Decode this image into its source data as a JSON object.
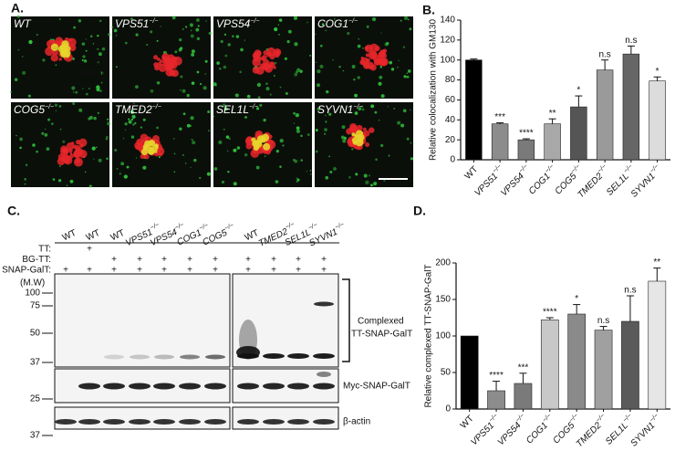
{
  "panels": {
    "a": {
      "label": "A.",
      "images": [
        "WT",
        "VPS51−/−",
        "VPS54−/−",
        "COG1−/−",
        "COG5−/−",
        "TMED2−/−",
        "SEL1L−/−",
        "SYVN1−/−"
      ],
      "channels": [
        "TT",
        "GM130"
      ]
    },
    "b": {
      "label": "B."
    },
    "c": {
      "label": "C."
    },
    "d": {
      "label": "D."
    }
  },
  "blot": {
    "lanes": [
      "WT",
      "WT",
      "WT",
      "VPS51−/−",
      "VPS54−/−",
      "COG1−/−",
      "COG5−/−",
      "WT",
      "TMED2−/−",
      "SEL1L−/−",
      "SYVN1−/−"
    ],
    "rows": [
      {
        "name": "TT:",
        "marks": [
          null,
          "+",
          null,
          null,
          null,
          null,
          null,
          null,
          null,
          null,
          null
        ]
      },
      {
        "name": "BG-TT:",
        "marks": [
          null,
          null,
          "+",
          "+",
          "+",
          "+",
          "+",
          "+",
          "+",
          "+",
          "+"
        ]
      },
      {
        "name": "SNAP-GalT:",
        "marks": [
          "+",
          "+",
          "+",
          "+",
          "+",
          "+",
          "+",
          "+",
          "+",
          "+",
          "+"
        ]
      }
    ],
    "mw_title": "(M.W)",
    "mw": [
      100,
      75,
      50,
      37,
      25,
      37
    ],
    "complexed": [
      "Complexed",
      "TT-SNAP-GalT"
    ],
    "myc": "Myc-SNAP-GalT",
    "actin": "β-actin"
  },
  "chart_data": [
    {
      "type": "bar",
      "y_label": "Relative colocalization with GM130",
      "categories": [
        "WT",
        "VPS51−/−",
        "VPS54−/−",
        "COG1−/−",
        "COG5−/−",
        "TMED2−/−",
        "SEL1L−/−",
        "SYVN1−/−"
      ],
      "values": [
        100,
        36,
        20,
        36,
        53,
        90,
        106,
        79
      ],
      "errors": [
        1,
        1,
        1,
        5,
        11,
        10,
        8,
        4
      ],
      "significance": [
        null,
        "***",
        "****",
        "**",
        "*",
        "n.s",
        "n.s",
        "*"
      ],
      "colors": [
        "#000000",
        "#8c8c8c",
        "#7a7a7a",
        "#a8a8a8",
        "#555555",
        "#9a9a9a",
        "#666666",
        "#dcdcdc"
      ],
      "ylim": [
        0,
        140
      ],
      "yticks": [
        0,
        20,
        40,
        60,
        80,
        100,
        120,
        140
      ]
    },
    {
      "type": "bar",
      "y_label": "Relative complexed TT-SNAP-GalT",
      "categories": [
        "WT",
        "VPS51−/−",
        "VPS54−/−",
        "COG1−/−",
        "COG5−/−",
        "TMED2−/−",
        "SEL1L−/−",
        "SYVN1−/−"
      ],
      "values": [
        100,
        25,
        35,
        122,
        130,
        108,
        120,
        175
      ],
      "errors": [
        null,
        13,
        14,
        3,
        13,
        5,
        35,
        18
      ],
      "significance": [
        null,
        "****",
        "***",
        "****",
        "*",
        "n.s",
        "n.s",
        "**"
      ],
      "colors": [
        "#000000",
        "#8c8c8c",
        "#7a7a7a",
        "#c8c8c8",
        "#8a8a8a",
        "#a0a0a0",
        "#5a5a5a",
        "#e6e6e6"
      ],
      "ylim": [
        0,
        200
      ],
      "yticks": [
        0,
        50,
        100,
        150,
        200
      ]
    }
  ]
}
